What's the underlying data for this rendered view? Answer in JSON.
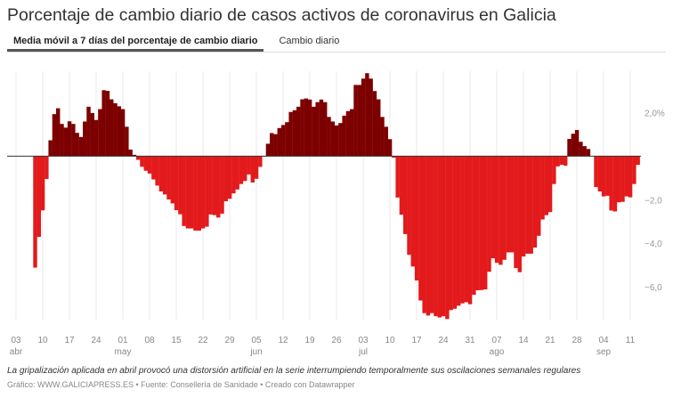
{
  "title": "Porcentaje de cambio diario de casos activos de coronavirus en Galicia",
  "tabs": [
    {
      "label": "Media móvil a 7 días del porcentaje de cambio diario",
      "active": true
    },
    {
      "label": "Cambio diario",
      "active": false
    }
  ],
  "note": "La gripalización aplicada en abril provocó una distorsión artificial en la serie interrumpiendo temporalmente sus oscilaciones semanales regulares",
  "credit": "Gráfico: WWW.GALICIAPRESS.ES • Fuente: Consellería de Sanidade • Creado con Datawrapper",
  "colors": {
    "positive": "#7d0000",
    "negative": "#e31a1c",
    "grid": "#e8e8e8",
    "zero_line": "#333333"
  },
  "chart_data": {
    "type": "bar",
    "title": "Porcentaje de cambio diario de casos activos de coronavirus en Galicia",
    "xlabel": "",
    "ylabel": "",
    "ylim": [
      -7.55,
      3.9
    ],
    "grid": true,
    "y_ticks": [
      {
        "value": 2,
        "label": "2,0%"
      },
      {
        "value": -2,
        "label": "−2,0"
      },
      {
        "value": -4,
        "label": "−4,0"
      },
      {
        "value": -6,
        "label": "−6,0"
      }
    ],
    "x_ticks": [
      {
        "date": "04-03",
        "day": "03",
        "month": "abr"
      },
      {
        "date": "04-10",
        "day": "10"
      },
      {
        "date": "04-17",
        "day": "17"
      },
      {
        "date": "04-24",
        "day": "24"
      },
      {
        "date": "05-01",
        "day": "01",
        "month": "may"
      },
      {
        "date": "05-08",
        "day": "08"
      },
      {
        "date": "05-15",
        "day": "15"
      },
      {
        "date": "05-22",
        "day": "22"
      },
      {
        "date": "05-29",
        "day": "29"
      },
      {
        "date": "06-05",
        "day": "05",
        "month": "jun"
      },
      {
        "date": "06-12",
        "day": "12"
      },
      {
        "date": "06-19",
        "day": "19"
      },
      {
        "date": "06-26",
        "day": "26"
      },
      {
        "date": "07-03",
        "day": "03",
        "month": "jul"
      },
      {
        "date": "07-10",
        "day": "10"
      },
      {
        "date": "07-17",
        "day": "17"
      },
      {
        "date": "07-24",
        "day": "24"
      },
      {
        "date": "07-31",
        "day": "31"
      },
      {
        "date": "08-07",
        "day": "07",
        "month": "ago"
      },
      {
        "date": "08-14",
        "day": "14"
      },
      {
        "date": "08-21",
        "day": "21"
      },
      {
        "date": "08-28",
        "day": "28"
      },
      {
        "date": "09-04",
        "day": "04",
        "month": "sep"
      },
      {
        "date": "09-11",
        "day": "11"
      }
    ],
    "x": [
      "04-08",
      "04-09",
      "04-10",
      "04-11",
      "04-12",
      "04-13",
      "04-14",
      "04-15",
      "04-16",
      "04-17",
      "04-18",
      "04-19",
      "04-20",
      "04-21",
      "04-22",
      "04-23",
      "04-24",
      "04-25",
      "04-26",
      "04-27",
      "04-28",
      "04-29",
      "04-30",
      "05-01",
      "05-02",
      "05-03",
      "05-04",
      "05-05",
      "05-06",
      "05-07",
      "05-08",
      "05-09",
      "05-10",
      "05-11",
      "05-12",
      "05-13",
      "05-14",
      "05-15",
      "05-16",
      "05-17",
      "05-18",
      "05-19",
      "05-20",
      "05-21",
      "05-22",
      "05-23",
      "05-24",
      "05-25",
      "05-26",
      "05-27",
      "05-28",
      "05-29",
      "05-30",
      "05-31",
      "06-01",
      "06-02",
      "06-03",
      "06-04",
      "06-05",
      "06-06",
      "06-07",
      "06-08",
      "06-09",
      "06-10",
      "06-11",
      "06-12",
      "06-13",
      "06-14",
      "06-15",
      "06-16",
      "06-17",
      "06-18",
      "06-19",
      "06-20",
      "06-21",
      "06-22",
      "06-23",
      "06-24",
      "06-25",
      "06-26",
      "06-27",
      "06-28",
      "06-29",
      "06-30",
      "07-01",
      "07-02",
      "07-03",
      "07-04",
      "07-05",
      "07-06",
      "07-07",
      "07-08",
      "07-09",
      "07-10",
      "07-11",
      "07-12",
      "07-13",
      "07-14",
      "07-15",
      "07-16",
      "07-17",
      "07-18",
      "07-19",
      "07-20",
      "07-21",
      "07-22",
      "07-23",
      "07-24",
      "07-25",
      "07-26",
      "07-27",
      "07-28",
      "07-29",
      "07-30",
      "07-31",
      "08-01",
      "08-02",
      "08-03",
      "08-04",
      "08-05",
      "08-06",
      "08-07",
      "08-08",
      "08-09",
      "08-10",
      "08-11",
      "08-12",
      "08-13",
      "08-14",
      "08-15",
      "08-16",
      "08-17",
      "08-18",
      "08-19",
      "08-20",
      "08-21",
      "08-22",
      "08-23",
      "08-24",
      "08-25",
      "08-26",
      "08-27",
      "08-28",
      "08-29",
      "08-30",
      "08-31",
      "09-01",
      "09-02",
      "09-03",
      "09-04",
      "09-05",
      "09-06",
      "09-07",
      "09-08",
      "09-09",
      "09-10",
      "09-11",
      "09-12",
      "09-13"
    ],
    "values": [
      -5.12,
      -3.71,
      -2.49,
      -1.05,
      0.73,
      1.93,
      2.2,
      1.48,
      1.31,
      1.6,
      1.48,
      1.07,
      0.88,
      1.59,
      2.27,
      1.98,
      1.66,
      2.16,
      3.03,
      3.0,
      2.61,
      2.43,
      2.29,
      2.16,
      1.35,
      0.3,
      0.06,
      -0.17,
      -0.49,
      -0.67,
      -0.8,
      -1.07,
      -1.35,
      -1.62,
      -1.76,
      -1.99,
      -2.17,
      -2.48,
      -2.67,
      -3.21,
      -3.32,
      -3.32,
      -3.42,
      -3.42,
      -3.32,
      -3.24,
      -2.68,
      -2.71,
      -2.82,
      -2.64,
      -2.07,
      -1.96,
      -1.71,
      -1.53,
      -1.28,
      -1.14,
      -0.84,
      -1.21,
      -1.04,
      -0.49,
      -0.02,
      0.57,
      1.06,
      1.01,
      1.29,
      1.43,
      1.56,
      2.03,
      2.11,
      2.27,
      2.61,
      2.65,
      2.6,
      2.27,
      2.48,
      2.6,
      2.48,
      1.8,
      1.59,
      1.41,
      1.52,
      1.86,
      2.07,
      2.16,
      3.27,
      3.27,
      3.56,
      3.81,
      3.56,
      2.99,
      2.61,
      1.8,
      1.35,
      0.78,
      -0.07,
      -1.9,
      -2.69,
      -3.58,
      -4.53,
      -5.07,
      -5.71,
      -6.63,
      -7.21,
      -7.32,
      -7.21,
      -7.35,
      -7.41,
      -7.35,
      -7.48,
      -7.07,
      -7.01,
      -6.87,
      -6.76,
      -6.71,
      -6.8,
      -6.37,
      -6.16,
      -6.15,
      -6.12,
      -5.31,
      -4.69,
      -4.9,
      -4.99,
      -4.76,
      -4.42,
      -4.42,
      -5.14,
      -5.33,
      -4.61,
      -4.48,
      -4.48,
      -4.2,
      -3.66,
      -2.91,
      -2.71,
      -2.57,
      -1.28,
      -0.47,
      -0.4,
      -0.44,
      0.79,
      1.03,
      1.2,
      0.66,
      0.46,
      0.33,
      0,
      -1.42,
      -1.62,
      -1.85,
      -1.82,
      -2.5,
      -2.54,
      -2.12,
      -2.1,
      -1.85,
      -1.89,
      -1.28,
      -0.4
    ]
  }
}
